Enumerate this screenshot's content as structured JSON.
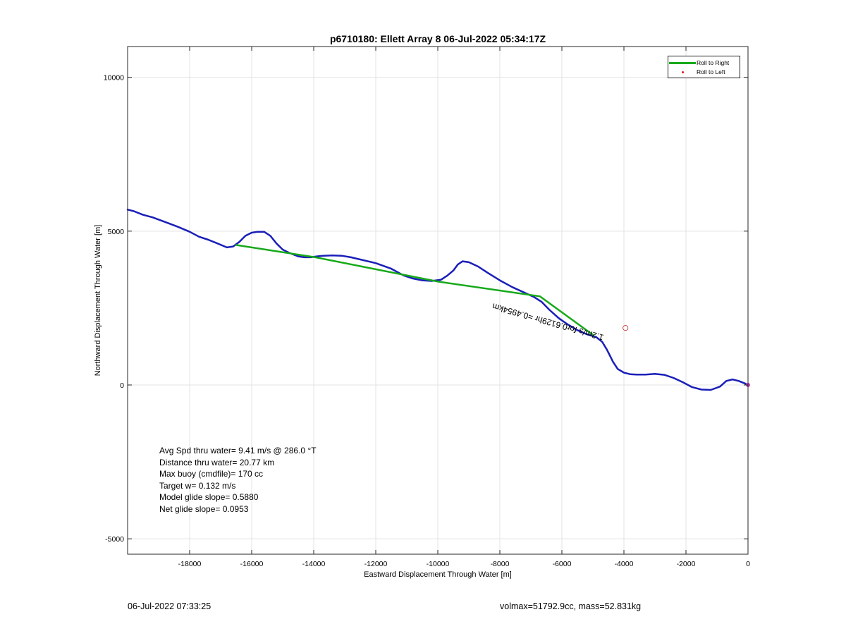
{
  "chart_data": {
    "type": "line",
    "title": "p6710180: Ellett Array 8 06-Jul-2022 05:34:17Z",
    "xlabel": "Eastward Displacement Through Water [m]",
    "ylabel": "Northward Displacement Through Water [m]",
    "xlim": [
      -20000,
      0
    ],
    "ylim": [
      -5500,
      11000
    ],
    "xticks": [
      -18000,
      -16000,
      -14000,
      -12000,
      -10000,
      -8000,
      -6000,
      -4000,
      -2000,
      0
    ],
    "yticks": [
      -5000,
      0,
      5000,
      10000
    ],
    "grid": true,
    "legend_position": "top-right",
    "legend": [
      {
        "label": "Roll to Right",
        "color": "#17a91a",
        "style": "line"
      },
      {
        "label": "Roll to Left",
        "color": "#e0191a",
        "style": "dot"
      }
    ],
    "series": [
      {
        "name": "Roll to Right",
        "color": "#17a91a",
        "x": [
          -16500,
          -13950,
          -9990,
          -6710,
          -5000
        ],
        "y": [
          4550,
          4150,
          3360,
          2880,
          1630
        ]
      },
      {
        "color": "#1a1fb8",
        "x": [
          -20000,
          -19800,
          -19500,
          -19200,
          -18800,
          -18400,
          -18000,
          -17700,
          -17400,
          -17100,
          -16800,
          -16600,
          -16400,
          -16200,
          -16000,
          -15800,
          -15600,
          -15400,
          -15200,
          -15000,
          -14800,
          -14500,
          -14300,
          -14100,
          -13900,
          -13700,
          -13400,
          -13100,
          -12800,
          -12500,
          -12000,
          -11500,
          -11100,
          -10800,
          -10500,
          -10200,
          -9900,
          -9700,
          -9500,
          -9350,
          -9200,
          -9000,
          -8700,
          -8400,
          -8000,
          -7600,
          -7200,
          -6900,
          -6650,
          -6400,
          -6100,
          -5800,
          -5500,
          -5200,
          -4900,
          -4700,
          -4550,
          -4450,
          -4350,
          -4200,
          -4000,
          -3800,
          -3600,
          -3300,
          -3000,
          -2700,
          -2400,
          -2100,
          -1800,
          -1500,
          -1200,
          -900,
          -700,
          -500,
          -300,
          -100,
          0
        ],
        "y": [
          5700,
          5650,
          5530,
          5450,
          5300,
          5150,
          4980,
          4820,
          4720,
          4600,
          4470,
          4500,
          4650,
          4850,
          4950,
          4980,
          4980,
          4850,
          4600,
          4400,
          4300,
          4180,
          4150,
          4150,
          4180,
          4200,
          4210,
          4200,
          4150,
          4080,
          3960,
          3780,
          3560,
          3460,
          3400,
          3380,
          3420,
          3550,
          3720,
          3920,
          4020,
          3990,
          3850,
          3650,
          3400,
          3180,
          3000,
          2860,
          2700,
          2440,
          2170,
          1960,
          1780,
          1650,
          1560,
          1400,
          1150,
          950,
          750,
          520,
          400,
          350,
          340,
          340,
          360,
          330,
          230,
          90,
          -70,
          -150,
          -160,
          -50,
          130,
          180,
          130,
          50,
          0
        ]
      }
    ],
    "annotations": [
      {
        "text": "1.2m/s for0.6129hr =0.4954km",
        "x": -4000,
        "y": 1850,
        "rotation": 196
      },
      {
        "text": "○",
        "x": -3950,
        "y": 1850
      }
    ],
    "stats": [
      "Avg Spd thru water=  9.41 m/s @ 286.0 °T",
      "Distance thru water= 20.77 km",
      "Max buoy (cmdfile)= 170 cc",
      "Target w= 0.132 m/s",
      "Model glide slope= 0.5880",
      "Net glide slope= 0.0953"
    ],
    "footer_left": "06-Jul-2022 07:33:25",
    "footer_right": "volmax=51792.9cc, mass=52.831kg"
  }
}
